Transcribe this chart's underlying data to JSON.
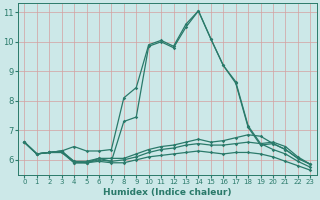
{
  "xlabel": "Humidex (Indice chaleur)",
  "xlim": [
    -0.5,
    23.5
  ],
  "ylim": [
    5.5,
    11.3
  ],
  "yticks": [
    6,
    7,
    8,
    9,
    10,
    11
  ],
  "xticks": [
    0,
    1,
    2,
    3,
    4,
    5,
    6,
    7,
    8,
    9,
    10,
    11,
    12,
    13,
    14,
    15,
    16,
    17,
    18,
    19,
    20,
    21,
    22,
    23
  ],
  "bg_color": "#cce8e8",
  "grid_color": "#d4a0a0",
  "line_color": "#2a7a6a",
  "spine_color": "#2a7a6a",
  "lines": [
    {
      "x": [
        0,
        1,
        2,
        3,
        4,
        5,
        6,
        7,
        8,
        9,
        10,
        11,
        12,
        13,
        14,
        15,
        16,
        17,
        18,
        19,
        20,
        21,
        22,
        23
      ],
      "y": [
        6.6,
        6.2,
        6.25,
        6.3,
        5.9,
        5.9,
        6.05,
        5.95,
        7.3,
        7.45,
        9.85,
        10.0,
        9.8,
        10.5,
        11.05,
        10.1,
        9.2,
        8.6,
        7.1,
        6.5,
        6.55,
        6.35,
        6.05,
        5.85
      ]
    },
    {
      "x": [
        0,
        1,
        2,
        3,
        4,
        5,
        6,
        7,
        8,
        9,
        10,
        11,
        12,
        13,
        14,
        15,
        16,
        17,
        18,
        19,
        20,
        21,
        22,
        23
      ],
      "y": [
        6.6,
        6.2,
        6.25,
        6.3,
        6.45,
        6.3,
        6.3,
        6.35,
        8.1,
        8.45,
        9.9,
        10.05,
        9.85,
        10.6,
        11.05,
        10.1,
        9.2,
        8.65,
        7.15,
        6.55,
        6.6,
        6.45,
        6.1,
        5.85
      ]
    },
    {
      "x": [
        0,
        1,
        2,
        3,
        4,
        5,
        6,
        7,
        8,
        9,
        10,
        11,
        12,
        13,
        14,
        15,
        16,
        17,
        18,
        19,
        20,
        21,
        22,
        23
      ],
      "y": [
        6.6,
        6.2,
        6.25,
        6.3,
        5.95,
        5.95,
        6.05,
        6.05,
        6.05,
        6.2,
        6.35,
        6.45,
        6.5,
        6.6,
        6.7,
        6.6,
        6.65,
        6.75,
        6.85,
        6.8,
        6.55,
        6.35,
        6.05,
        5.85
      ]
    },
    {
      "x": [
        0,
        1,
        2,
        3,
        4,
        5,
        6,
        7,
        8,
        9,
        10,
        11,
        12,
        13,
        14,
        15,
        16,
        17,
        18,
        19,
        20,
        21,
        22,
        23
      ],
      "y": [
        6.6,
        6.2,
        6.25,
        6.25,
        5.95,
        5.9,
        6.0,
        5.95,
        6.0,
        6.1,
        6.25,
        6.35,
        6.4,
        6.5,
        6.55,
        6.5,
        6.5,
        6.55,
        6.6,
        6.55,
        6.35,
        6.2,
        5.95,
        5.75
      ]
    },
    {
      "x": [
        0,
        1,
        2,
        3,
        4,
        5,
        6,
        7,
        8,
        9,
        10,
        11,
        12,
        13,
        14,
        15,
        16,
        17,
        18,
        19,
        20,
        21,
        22,
        23
      ],
      "y": [
        6.6,
        6.2,
        6.25,
        6.25,
        5.9,
        5.9,
        5.95,
        5.9,
        5.9,
        6.0,
        6.1,
        6.15,
        6.2,
        6.25,
        6.3,
        6.25,
        6.2,
        6.25,
        6.25,
        6.2,
        6.1,
        5.95,
        5.8,
        5.65
      ]
    }
  ],
  "tick_fontsize": 5.5,
  "xlabel_fontsize": 6.5,
  "tick_color": "#2a7a6a",
  "marker": "D",
  "markersize": 1.8,
  "linewidth": 0.9
}
